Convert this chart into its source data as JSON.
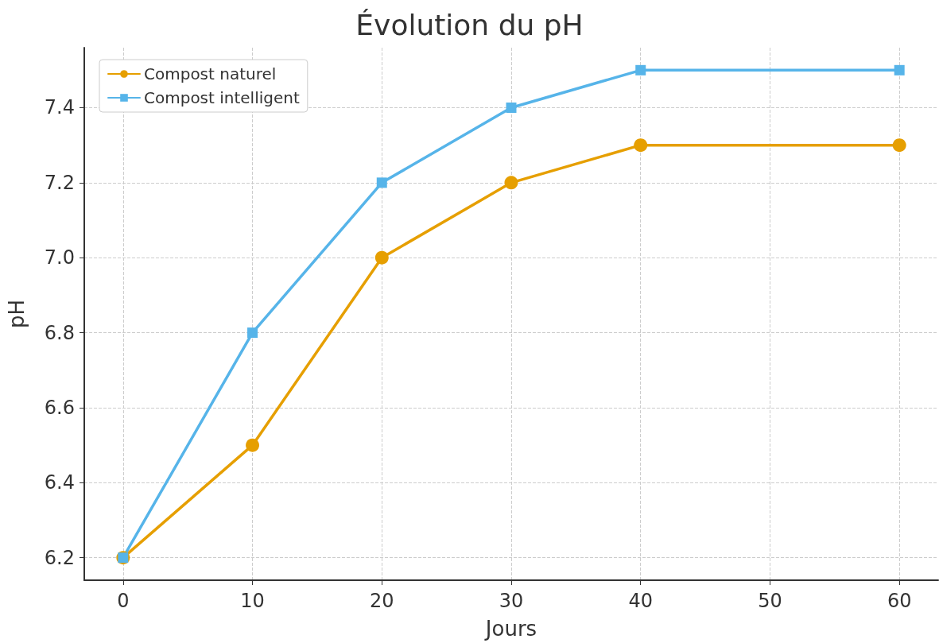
{
  "chart_data": {
    "type": "line",
    "title": "Évolution du pH",
    "xlabel": "Jours",
    "ylabel": "pH",
    "x": [
      0,
      10,
      20,
      30,
      40,
      60
    ],
    "series": [
      {
        "name": "Compost naturel",
        "color": "#e69f00",
        "marker": "circle",
        "values": [
          6.2,
          6.5,
          7.0,
          7.2,
          7.3,
          7.3
        ]
      },
      {
        "name": "Compost intelligent",
        "color": "#56b4e9",
        "marker": "square",
        "values": [
          6.2,
          6.8,
          7.2,
          7.4,
          7.5,
          7.5
        ]
      }
    ],
    "xlim": [
      -3,
      63
    ],
    "xticks": [
      0,
      10,
      20,
      30,
      40,
      50,
      60
    ],
    "ylim": [
      6.14,
      7.56
    ],
    "yticks": [
      6.2,
      6.4,
      6.6,
      6.8,
      {
        "value": 7,
        "label": "7.0"
      },
      7.2,
      7.4
    ],
    "grid": true,
    "legend": "top left",
    "line_style": "solid"
  }
}
